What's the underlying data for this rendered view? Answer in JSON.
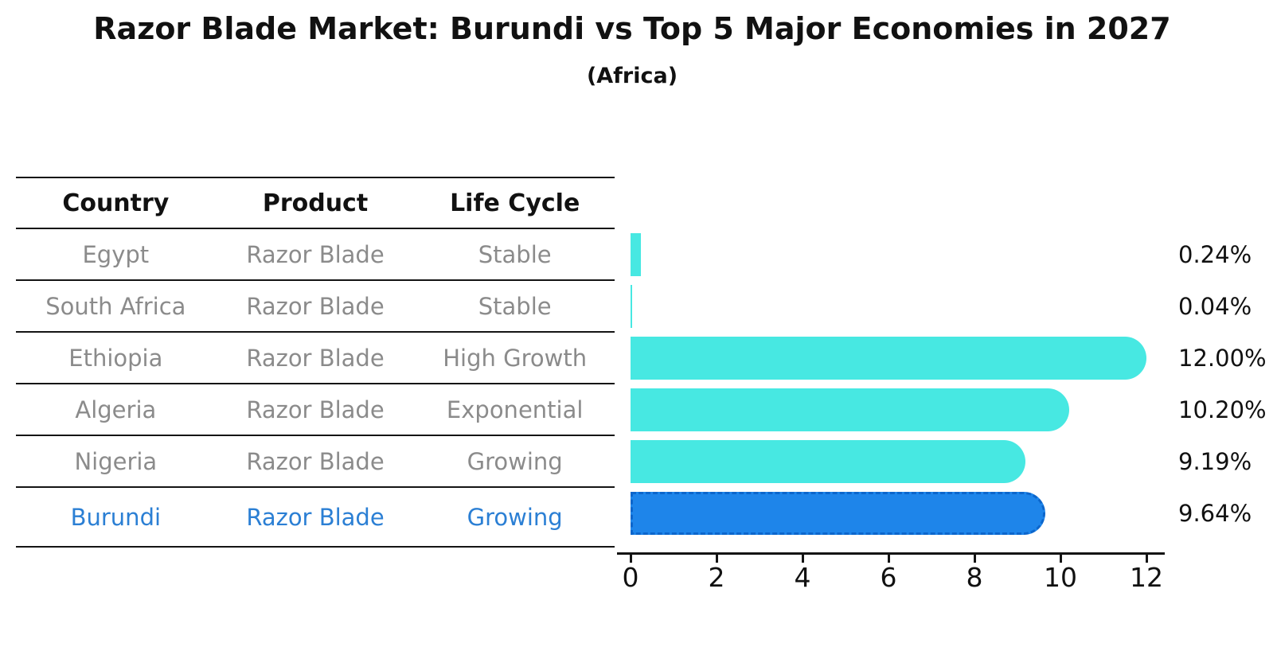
{
  "table": {
    "columns": [
      "Country",
      "Product",
      "Life Cycle"
    ],
    "rows": [
      {
        "country": "Egypt",
        "product": "Razor Blade",
        "life_cycle": "Stable",
        "highlight": false
      },
      {
        "country": "South Africa",
        "product": "Razor Blade",
        "life_cycle": "Stable",
        "highlight": false
      },
      {
        "country": "Ethiopia",
        "product": "Razor Blade",
        "life_cycle": "High Growth",
        "highlight": false
      },
      {
        "country": "Algeria",
        "product": "Razor Blade",
        "life_cycle": "Exponential",
        "highlight": false
      },
      {
        "country": "Nigeria",
        "product": "Razor Blade",
        "life_cycle": "Growing",
        "highlight": false
      },
      {
        "country": "Burundi",
        "product": "Razor Blade",
        "life_cycle": "Growing",
        "highlight": true
      }
    ]
  },
  "chart_data": {
    "type": "bar",
    "orientation": "horizontal",
    "title": "Razor Blade Market: Burundi vs Top 5 Major Economies in 2027",
    "subtitle": "(Africa)",
    "categories": [
      "Egypt",
      "South Africa",
      "Ethiopia",
      "Algeria",
      "Nigeria",
      "Burundi"
    ],
    "values": [
      0.24,
      0.04,
      12.0,
      10.2,
      9.19,
      9.64
    ],
    "value_labels": [
      "0.24%",
      "0.04%",
      "12.00%",
      "10.20%",
      "9.19%",
      "9.64%"
    ],
    "xlabel": "",
    "ylabel": "",
    "xlim": [
      0,
      12.4
    ],
    "xticks": [
      0,
      2,
      4,
      6,
      8,
      10,
      12
    ],
    "grid": false,
    "legend_position": "none",
    "highlight_category": "Burundi",
    "colors": {
      "bar": "#47E8E2",
      "highlight_bar": "#1E85EA",
      "highlight_bar_border": "#0C66CC",
      "highlight_text": "#2B7FD4",
      "table_text": "#8B8B8B",
      "heading_text": "#111111",
      "axis_line": "#141414",
      "background": "#FFFFFF"
    }
  }
}
